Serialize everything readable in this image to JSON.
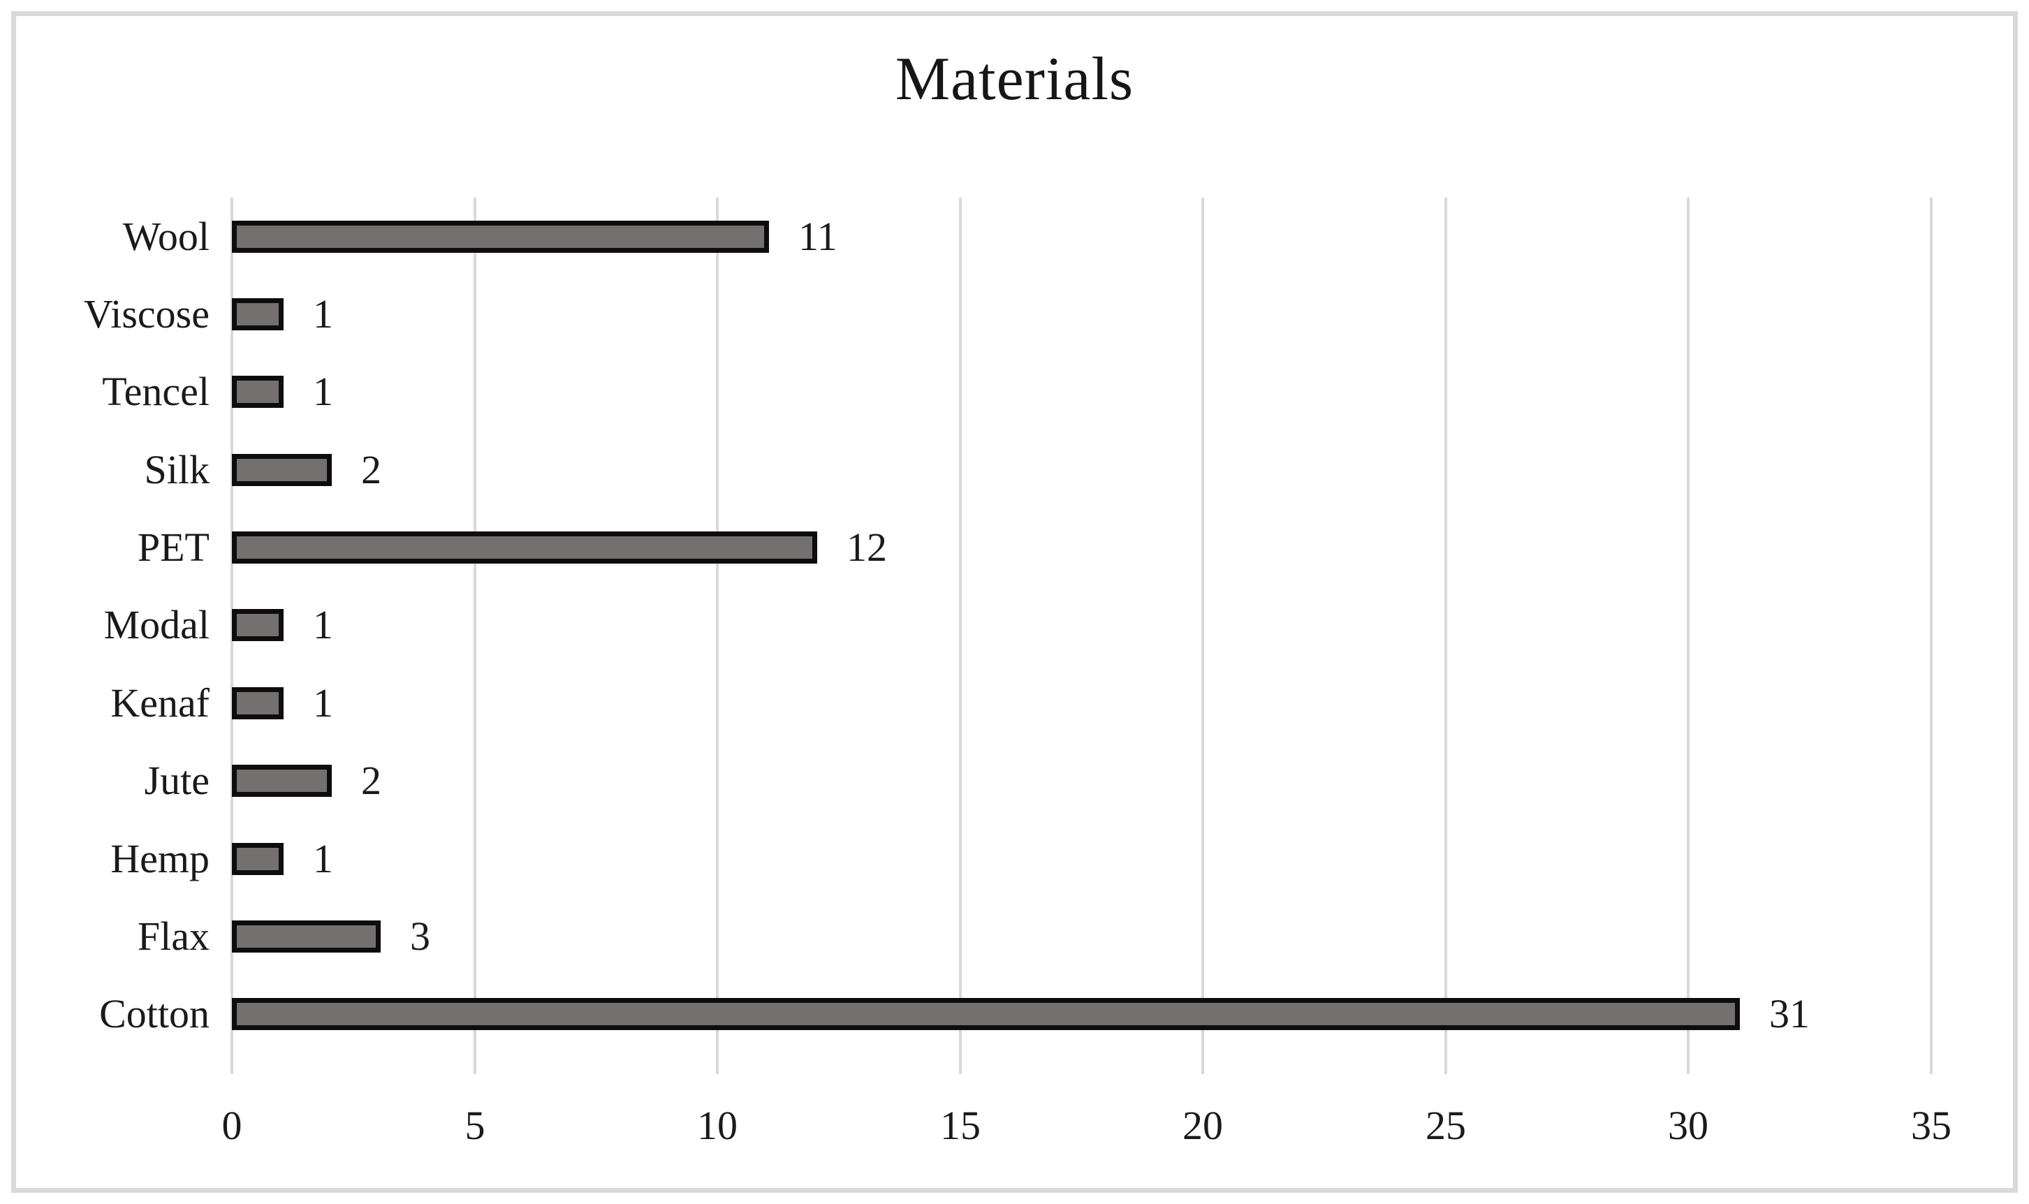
{
  "chart_data": {
    "type": "bar",
    "orientation": "horizontal",
    "title": "Materials",
    "categories": [
      "Wool",
      "Viscose",
      "Tencel",
      "Silk",
      "PET",
      "Modal",
      "Kenaf",
      "Jute",
      "Hemp",
      "Flax",
      "Cotton"
    ],
    "values": [
      11,
      1,
      1,
      2,
      12,
      1,
      1,
      2,
      1,
      3,
      31
    ],
    "category_order": "top-to-bottom",
    "data_labels": [
      11,
      1,
      1,
      2,
      12,
      1,
      1,
      2,
      1,
      3,
      31
    ],
    "xlabel": "",
    "ylabel": "",
    "xlim": [
      0,
      35
    ],
    "x_ticks": [
      0,
      5,
      10,
      15,
      20,
      25,
      30,
      35
    ],
    "grid": true,
    "legend_position": "none",
    "colors": {
      "bar_fill": "#747070",
      "bar_border": "#0d0d0d",
      "gridline": "#d9d9d9",
      "frame_border": "#d9d9d9",
      "text": "#1a1a1a",
      "background": "#ffffff"
    }
  }
}
